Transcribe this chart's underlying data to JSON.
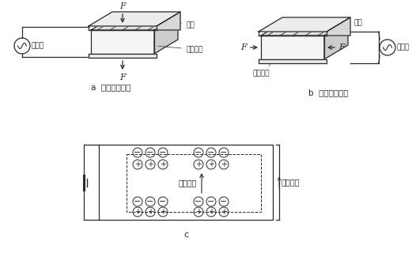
{
  "bg_color": "#ffffff",
  "line_color": "#2a2a2a",
  "label_a": "a  纵向压电效应",
  "label_b": "b  横向压电效应",
  "label_c": "c",
  "text_jiban": "极板",
  "text_taoci_a": "压电陶瓷",
  "text_taoci_b": "压电陶瓷",
  "text_dianliu_a": "电流计",
  "text_dianliu_b": "电流计",
  "text_polarize": "极化方向",
  "text_field": "外加电场",
  "F_label": "F",
  "fig_w": 5.21,
  "fig_h": 3.2,
  "dpi": 100
}
